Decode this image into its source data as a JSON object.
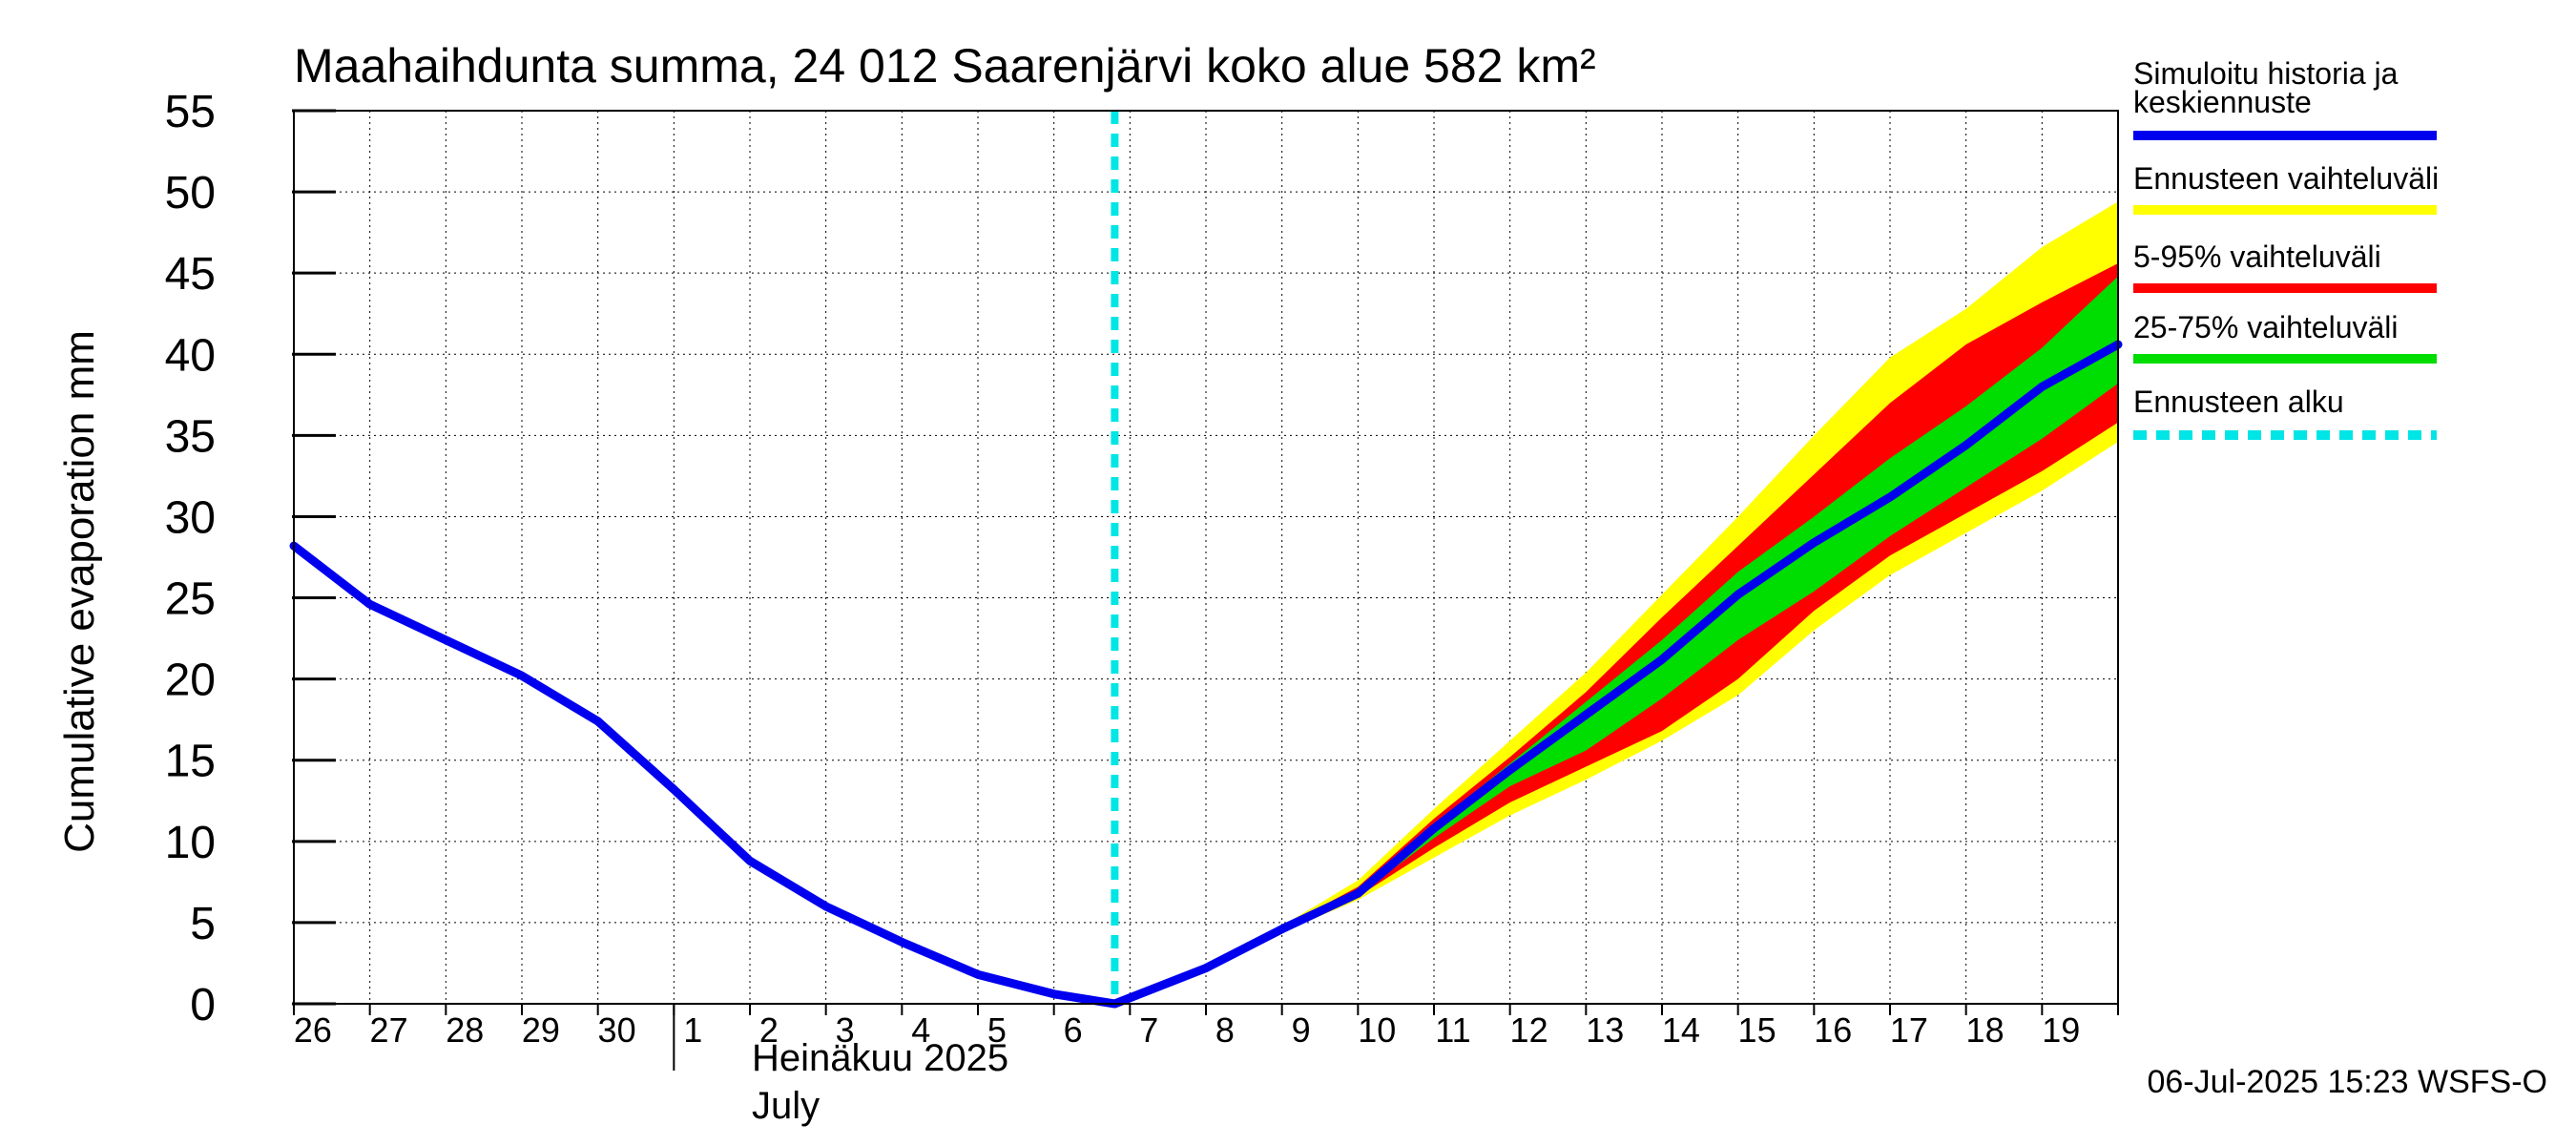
{
  "chart_data": {
    "type": "area",
    "title": "Maahaihdunta summa, 24 012 Saarenjärvi koko alue 582 km²",
    "ylabel": "Cumulative evaporation   mm",
    "xlabel_month_fi": "Heinäkuu  2025",
    "xlabel_month_en": "July",
    "ylim": [
      0,
      55
    ],
    "yticks": [
      "0",
      "5",
      "10",
      "15",
      "20",
      "25",
      "30",
      "35",
      "40",
      "45",
      "50",
      "55"
    ],
    "x_range": [
      0,
      24
    ],
    "day_labels": [
      "26",
      "27",
      "28",
      "29",
      "30",
      "1",
      "2",
      "3",
      "4",
      "5",
      "6",
      "7",
      "8",
      "9",
      "10",
      "11",
      "12",
      "13",
      "14",
      "15",
      "16",
      "17",
      "18",
      "19"
    ],
    "month_boundary": 5,
    "forecast_start": 10.8,
    "grid": true,
    "legend_position": "right",
    "timestamp": "06-Jul-2025 15:23 WSFS-O",
    "legend": [
      {
        "label": "Simuloitu historia ja keskiennuste",
        "lines": [
          "Simuloitu historia ja",
          "keskiennuste"
        ],
        "color": "#0000ee",
        "style": "solid"
      },
      {
        "label": "Ennusteen vaihteluväli",
        "lines": [
          "Ennusteen vaihteluväli"
        ],
        "color": "#ffff00",
        "style": "solid"
      },
      {
        "label": "5-95% vaihteluväli",
        "lines": [
          "5-95% vaihteluväli"
        ],
        "color": "#ff0000",
        "style": "solid"
      },
      {
        "label": "25-75% vaihteluväli",
        "lines": [
          "25-75% vaihteluväli"
        ],
        "color": "#00dd00",
        "style": "solid"
      },
      {
        "label": "Ennusteen alku",
        "lines": [
          "Ennusteen alku"
        ],
        "color": "#00e5e5",
        "style": "dashed"
      }
    ],
    "median": {
      "x": [
        0,
        1,
        2,
        3,
        4,
        5,
        6,
        7,
        8,
        9,
        10,
        10.8,
        12,
        13,
        14,
        15,
        16,
        17,
        18,
        19,
        20,
        21,
        22,
        23,
        24
      ],
      "y": [
        28.2,
        24.6,
        22.4,
        20.2,
        17.4,
        13.2,
        8.8,
        6.0,
        3.8,
        1.8,
        0.6,
        0,
        2.2,
        4.6,
        6.8,
        10.8,
        14.4,
        17.8,
        21.2,
        25.2,
        28.4,
        31.2,
        34.4,
        38.0,
        40.6
      ]
    },
    "bands": {
      "x": [
        10.8,
        12,
        13,
        14,
        15,
        16,
        17,
        18,
        19,
        20,
        21,
        22,
        23,
        24
      ],
      "full_min": [
        0,
        2.2,
        4.4,
        6.4,
        9.0,
        11.6,
        13.8,
        16.2,
        19.0,
        23.0,
        26.4,
        29.0,
        31.6,
        34.6
      ],
      "full_max": [
        0,
        2.2,
        4.8,
        7.6,
        12.0,
        16.2,
        20.4,
        25.2,
        30.0,
        35.0,
        39.8,
        42.8,
        46.6,
        49.4
      ],
      "p05": [
        0,
        2.2,
        4.5,
        6.6,
        9.6,
        12.4,
        14.6,
        16.8,
        20.0,
        24.2,
        27.6,
        30.2,
        32.8,
        35.8
      ],
      "p95": [
        0,
        2.2,
        4.7,
        7.2,
        11.4,
        15.2,
        19.2,
        23.8,
        28.2,
        32.6,
        37.0,
        40.6,
        43.2,
        45.6
      ],
      "p25": [
        0,
        2.2,
        4.6,
        6.7,
        10.2,
        13.4,
        15.6,
        18.8,
        22.4,
        25.4,
        28.8,
        31.8,
        34.8,
        38.2
      ],
      "p75": [
        0,
        2.2,
        4.6,
        7.0,
        11.0,
        14.8,
        18.6,
        22.4,
        26.6,
        30.0,
        33.6,
        36.8,
        40.4,
        44.8
      ]
    }
  }
}
